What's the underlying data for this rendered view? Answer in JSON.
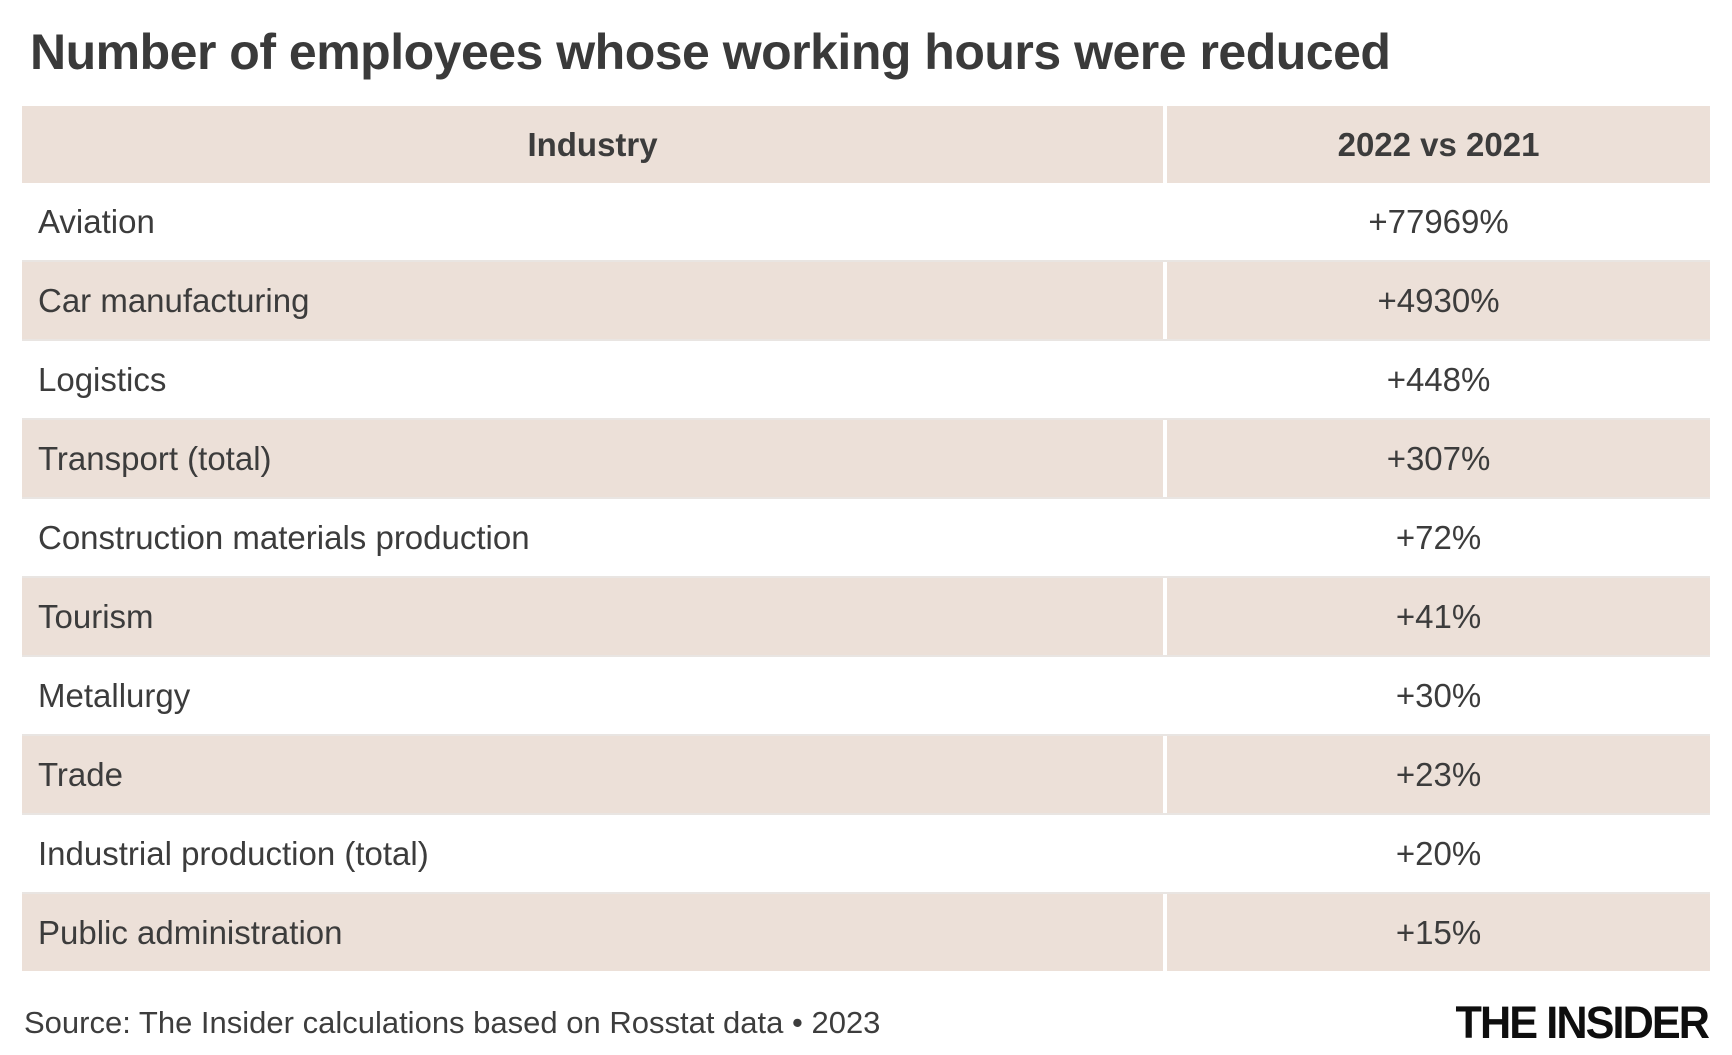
{
  "title": "Number of employees whose working hours were reduced",
  "table": {
    "columns": [
      "Industry",
      "2022 vs 2021"
    ],
    "rows": [
      {
        "industry": "Aviation",
        "change": "+77969%"
      },
      {
        "industry": "Car manufacturing",
        "change": "+4930%"
      },
      {
        "industry": "Logistics",
        "change": "+448%"
      },
      {
        "industry": "Transport (total)",
        "change": "+307%"
      },
      {
        "industry": "Construction materials production",
        "change": "+72%"
      },
      {
        "industry": "Tourism",
        "change": "+41%"
      },
      {
        "industry": "Metallurgy",
        "change": "+30%"
      },
      {
        "industry": "Trade",
        "change": "+23%"
      },
      {
        "industry": "Industrial production (total)",
        "change": "+20%"
      },
      {
        "industry": "Public administration",
        "change": "+15%"
      }
    ]
  },
  "footer": {
    "source": "Source: The Insider calculations based on Rosstat data • 2023",
    "brand": "THE INSIDER"
  },
  "colors": {
    "stripe": "#ece0d8",
    "text": "#3c3c3c",
    "separator": "#e9e5e2",
    "brand_text": "#0e0e0e",
    "background": "#ffffff"
  },
  "chart_data": {
    "type": "table",
    "title": "Number of employees whose working hours were reduced",
    "columns": [
      "Industry",
      "2022 vs 2021"
    ],
    "categories": [
      "Aviation",
      "Car manufacturing",
      "Logistics",
      "Transport (total)",
      "Construction materials production",
      "Tourism",
      "Metallurgy",
      "Trade",
      "Industrial production (total)",
      "Public administration"
    ],
    "values_pct_change": [
      77969,
      4930,
      448,
      307,
      72,
      41,
      30,
      23,
      20,
      15
    ],
    "value_labels": [
      "+77969%",
      "+4930%",
      "+448%",
      "+307%",
      "+72%",
      "+41%",
      "+30%",
      "+23%",
      "+20%",
      "+15%"
    ],
    "source": "Source: The Insider calculations based on Rosstat data • 2023",
    "layout": {
      "zebra_striping": true,
      "value_column_align": "center",
      "industry_column_align": "left"
    }
  }
}
